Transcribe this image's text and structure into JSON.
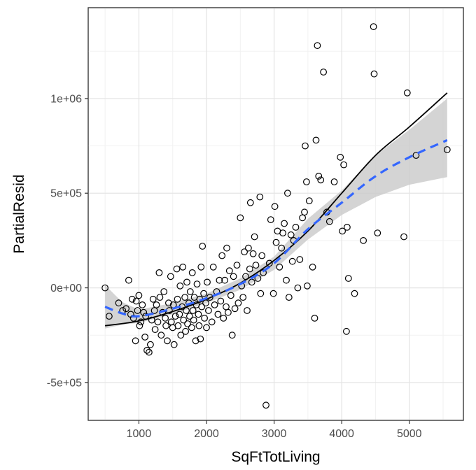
{
  "chart_data": {
    "type": "scatter",
    "title": "",
    "xlabel": "SqFtTotLiving",
    "ylabel": "PartialResid",
    "xlim": [
      250,
      5800
    ],
    "ylim": [
      -700000,
      1480000
    ],
    "x_ticks": [
      1000,
      2000,
      3000,
      4000,
      5000
    ],
    "x_tick_labels": [
      "1000",
      "2000",
      "3000",
      "4000",
      "5000"
    ],
    "y_ticks": [
      -500000,
      0,
      500000,
      1000000
    ],
    "y_tick_labels": [
      "-5e+05",
      "0e+00",
      "5e+05",
      "1e+06"
    ],
    "grid": true,
    "points": [
      [
        500,
        0
      ],
      [
        560,
        -150000
      ],
      [
        700,
        -80000
      ],
      [
        760,
        -120000
      ],
      [
        810,
        -110000
      ],
      [
        850,
        40000
      ],
      [
        880,
        -140000
      ],
      [
        900,
        -60000
      ],
      [
        920,
        -160000
      ],
      [
        950,
        -280000
      ],
      [
        960,
        -70000
      ],
      [
        980,
        -120000
      ],
      [
        1000,
        -40000
      ],
      [
        1010,
        -200000
      ],
      [
        1030,
        -180000
      ],
      [
        1050,
        -90000
      ],
      [
        1070,
        -130000
      ],
      [
        1090,
        -260000
      ],
      [
        1100,
        -150000
      ],
      [
        1120,
        -330000
      ],
      [
        1150,
        -340000
      ],
      [
        1170,
        -300000
      ],
      [
        1190,
        -170000
      ],
      [
        1210,
        -60000
      ],
      [
        1230,
        -120000
      ],
      [
        1240,
        -220000
      ],
      [
        1260,
        -90000
      ],
      [
        1280,
        -180000
      ],
      [
        1300,
        80000
      ],
      [
        1310,
        -50000
      ],
      [
        1330,
        -250000
      ],
      [
        1350,
        -130000
      ],
      [
        1370,
        -20000
      ],
      [
        1390,
        -160000
      ],
      [
        1400,
        -200000
      ],
      [
        1420,
        -280000
      ],
      [
        1440,
        -80000
      ],
      [
        1450,
        -120000
      ],
      [
        1470,
        60000
      ],
      [
        1480,
        -180000
      ],
      [
        1500,
        -210000
      ],
      [
        1510,
        -90000
      ],
      [
        1520,
        -300000
      ],
      [
        1540,
        -150000
      ],
      [
        1560,
        100000
      ],
      [
        1570,
        -60000
      ],
      [
        1580,
        -200000
      ],
      [
        1600,
        -140000
      ],
      [
        1610,
        10000
      ],
      [
        1620,
        -250000
      ],
      [
        1640,
        -100000
      ],
      [
        1650,
        110000
      ],
      [
        1660,
        -170000
      ],
      [
        1680,
        -50000
      ],
      [
        1690,
        -230000
      ],
      [
        1700,
        -120000
      ],
      [
        1710,
        30000
      ],
      [
        1720,
        -190000
      ],
      [
        1740,
        -80000
      ],
      [
        1750,
        -150000
      ],
      [
        1760,
        -20000
      ],
      [
        1780,
        -210000
      ],
      [
        1790,
        80000
      ],
      [
        1800,
        -120000
      ],
      [
        1810,
        -170000
      ],
      [
        1820,
        -50000
      ],
      [
        1840,
        -280000
      ],
      [
        1850,
        -90000
      ],
      [
        1860,
        20000
      ],
      [
        1880,
        -140000
      ],
      [
        1890,
        -200000
      ],
      [
        1900,
        -60000
      ],
      [
        1910,
        -270000
      ],
      [
        1920,
        110000
      ],
      [
        1930,
        -100000
      ],
      [
        1940,
        220000
      ],
      [
        1960,
        -30000
      ],
      [
        1970,
        -160000
      ],
      [
        1990,
        -80000
      ],
      [
        2000,
        -210000
      ],
      [
        2010,
        30000
      ],
      [
        2030,
        -120000
      ],
      [
        2050,
        -50000
      ],
      [
        2080,
        -180000
      ],
      [
        2100,
        110000
      ],
      [
        2120,
        -90000
      ],
      [
        2150,
        -20000
      ],
      [
        2170,
        -140000
      ],
      [
        2190,
        40000
      ],
      [
        2210,
        -70000
      ],
      [
        2230,
        170000
      ],
      [
        2250,
        -160000
      ],
      [
        2270,
        40000
      ],
      [
        2290,
        -100000
      ],
      [
        2300,
        210000
      ],
      [
        2320,
        -130000
      ],
      [
        2340,
        90000
      ],
      [
        2360,
        -40000
      ],
      [
        2380,
        -250000
      ],
      [
        2400,
        60000
      ],
      [
        2420,
        -110000
      ],
      [
        2450,
        120000
      ],
      [
        2470,
        -80000
      ],
      [
        2500,
        370000
      ],
      [
        2520,
        10000
      ],
      [
        2540,
        -50000
      ],
      [
        2560,
        190000
      ],
      [
        2580,
        60000
      ],
      [
        2600,
        -120000
      ],
      [
        2620,
        210000
      ],
      [
        2640,
        100000
      ],
      [
        2650,
        450000
      ],
      [
        2670,
        30000
      ],
      [
        2690,
        180000
      ],
      [
        2710,
        270000
      ],
      [
        2730,
        120000
      ],
      [
        2760,
        50000
      ],
      [
        2790,
        480000
      ],
      [
        2800,
        -30000
      ],
      [
        2820,
        170000
      ],
      [
        2840,
        80000
      ],
      [
        2880,
        -620000
      ],
      [
        2930,
        130000
      ],
      [
        2950,
        360000
      ],
      [
        2990,
        -30000
      ],
      [
        3010,
        430000
      ],
      [
        3030,
        240000
      ],
      [
        3050,
        300000
      ],
      [
        3080,
        110000
      ],
      [
        3110,
        210000
      ],
      [
        3130,
        290000
      ],
      [
        3150,
        340000
      ],
      [
        3180,
        40000
      ],
      [
        3200,
        500000
      ],
      [
        3220,
        -50000
      ],
      [
        3250,
        280000
      ],
      [
        3270,
        140000
      ],
      [
        3290,
        250000
      ],
      [
        3320,
        320000
      ],
      [
        3350,
        0
      ],
      [
        3380,
        150000
      ],
      [
        3420,
        370000
      ],
      [
        3450,
        400000
      ],
      [
        3460,
        750000
      ],
      [
        3480,
        560000
      ],
      [
        3490,
        10000
      ],
      [
        3520,
        460000
      ],
      [
        3570,
        110000
      ],
      [
        3600,
        -160000
      ],
      [
        3620,
        780000
      ],
      [
        3640,
        1280000
      ],
      [
        3660,
        590000
      ],
      [
        3690,
        570000
      ],
      [
        3730,
        1140000
      ],
      [
        3780,
        400000
      ],
      [
        3820,
        350000
      ],
      [
        3890,
        560000
      ],
      [
        3980,
        690000
      ],
      [
        4010,
        300000
      ],
      [
        4030,
        650000
      ],
      [
        4070,
        -230000
      ],
      [
        4080,
        320000
      ],
      [
        4100,
        50000
      ],
      [
        4190,
        -30000
      ],
      [
        4320,
        250000
      ],
      [
        4470,
        1380000
      ],
      [
        4480,
        1130000
      ],
      [
        4530,
        290000
      ],
      [
        4920,
        270000
      ],
      [
        4970,
        1030000
      ],
      [
        5100,
        700000
      ],
      [
        5560,
        730000
      ]
    ],
    "series": [
      {
        "name": "",
        "kind": "line",
        "color": "#000000",
        "points": [
          [
            500,
            -200000
          ],
          [
            1000,
            -175000
          ],
          [
            1500,
            -125000
          ],
          [
            2000,
            -60000
          ],
          [
            2500,
            25000
          ],
          [
            3000,
            145000
          ],
          [
            3500,
            300000
          ],
          [
            4000,
            500000
          ],
          [
            4500,
            700000
          ],
          [
            5000,
            850000
          ],
          [
            5560,
            1030000
          ]
        ]
      },
      {
        "name": "",
        "kind": "smooth",
        "color": "#3366ff",
        "points": [
          [
            500,
            -100000
          ],
          [
            750,
            -135000
          ],
          [
            1000,
            -150000
          ],
          [
            1500,
            -110000
          ],
          [
            2000,
            -55000
          ],
          [
            2500,
            20000
          ],
          [
            3000,
            130000
          ],
          [
            3500,
            310000
          ],
          [
            4000,
            450000
          ],
          [
            4500,
            590000
          ],
          [
            5000,
            690000
          ],
          [
            5560,
            780000
          ]
        ],
        "band_lower": [
          -215000,
          -195000,
          -185000,
          -140000,
          -80000,
          -10000,
          95000,
          255000,
          385000,
          480000,
          545000,
          585000
        ],
        "band_upper": [
          15000,
          -75000,
          -115000,
          -80000,
          -30000,
          50000,
          165000,
          365000,
          515000,
          700000,
          835000,
          1000000
        ]
      }
    ],
    "band_color": "#cccccc",
    "point_stroke": "#000000"
  }
}
